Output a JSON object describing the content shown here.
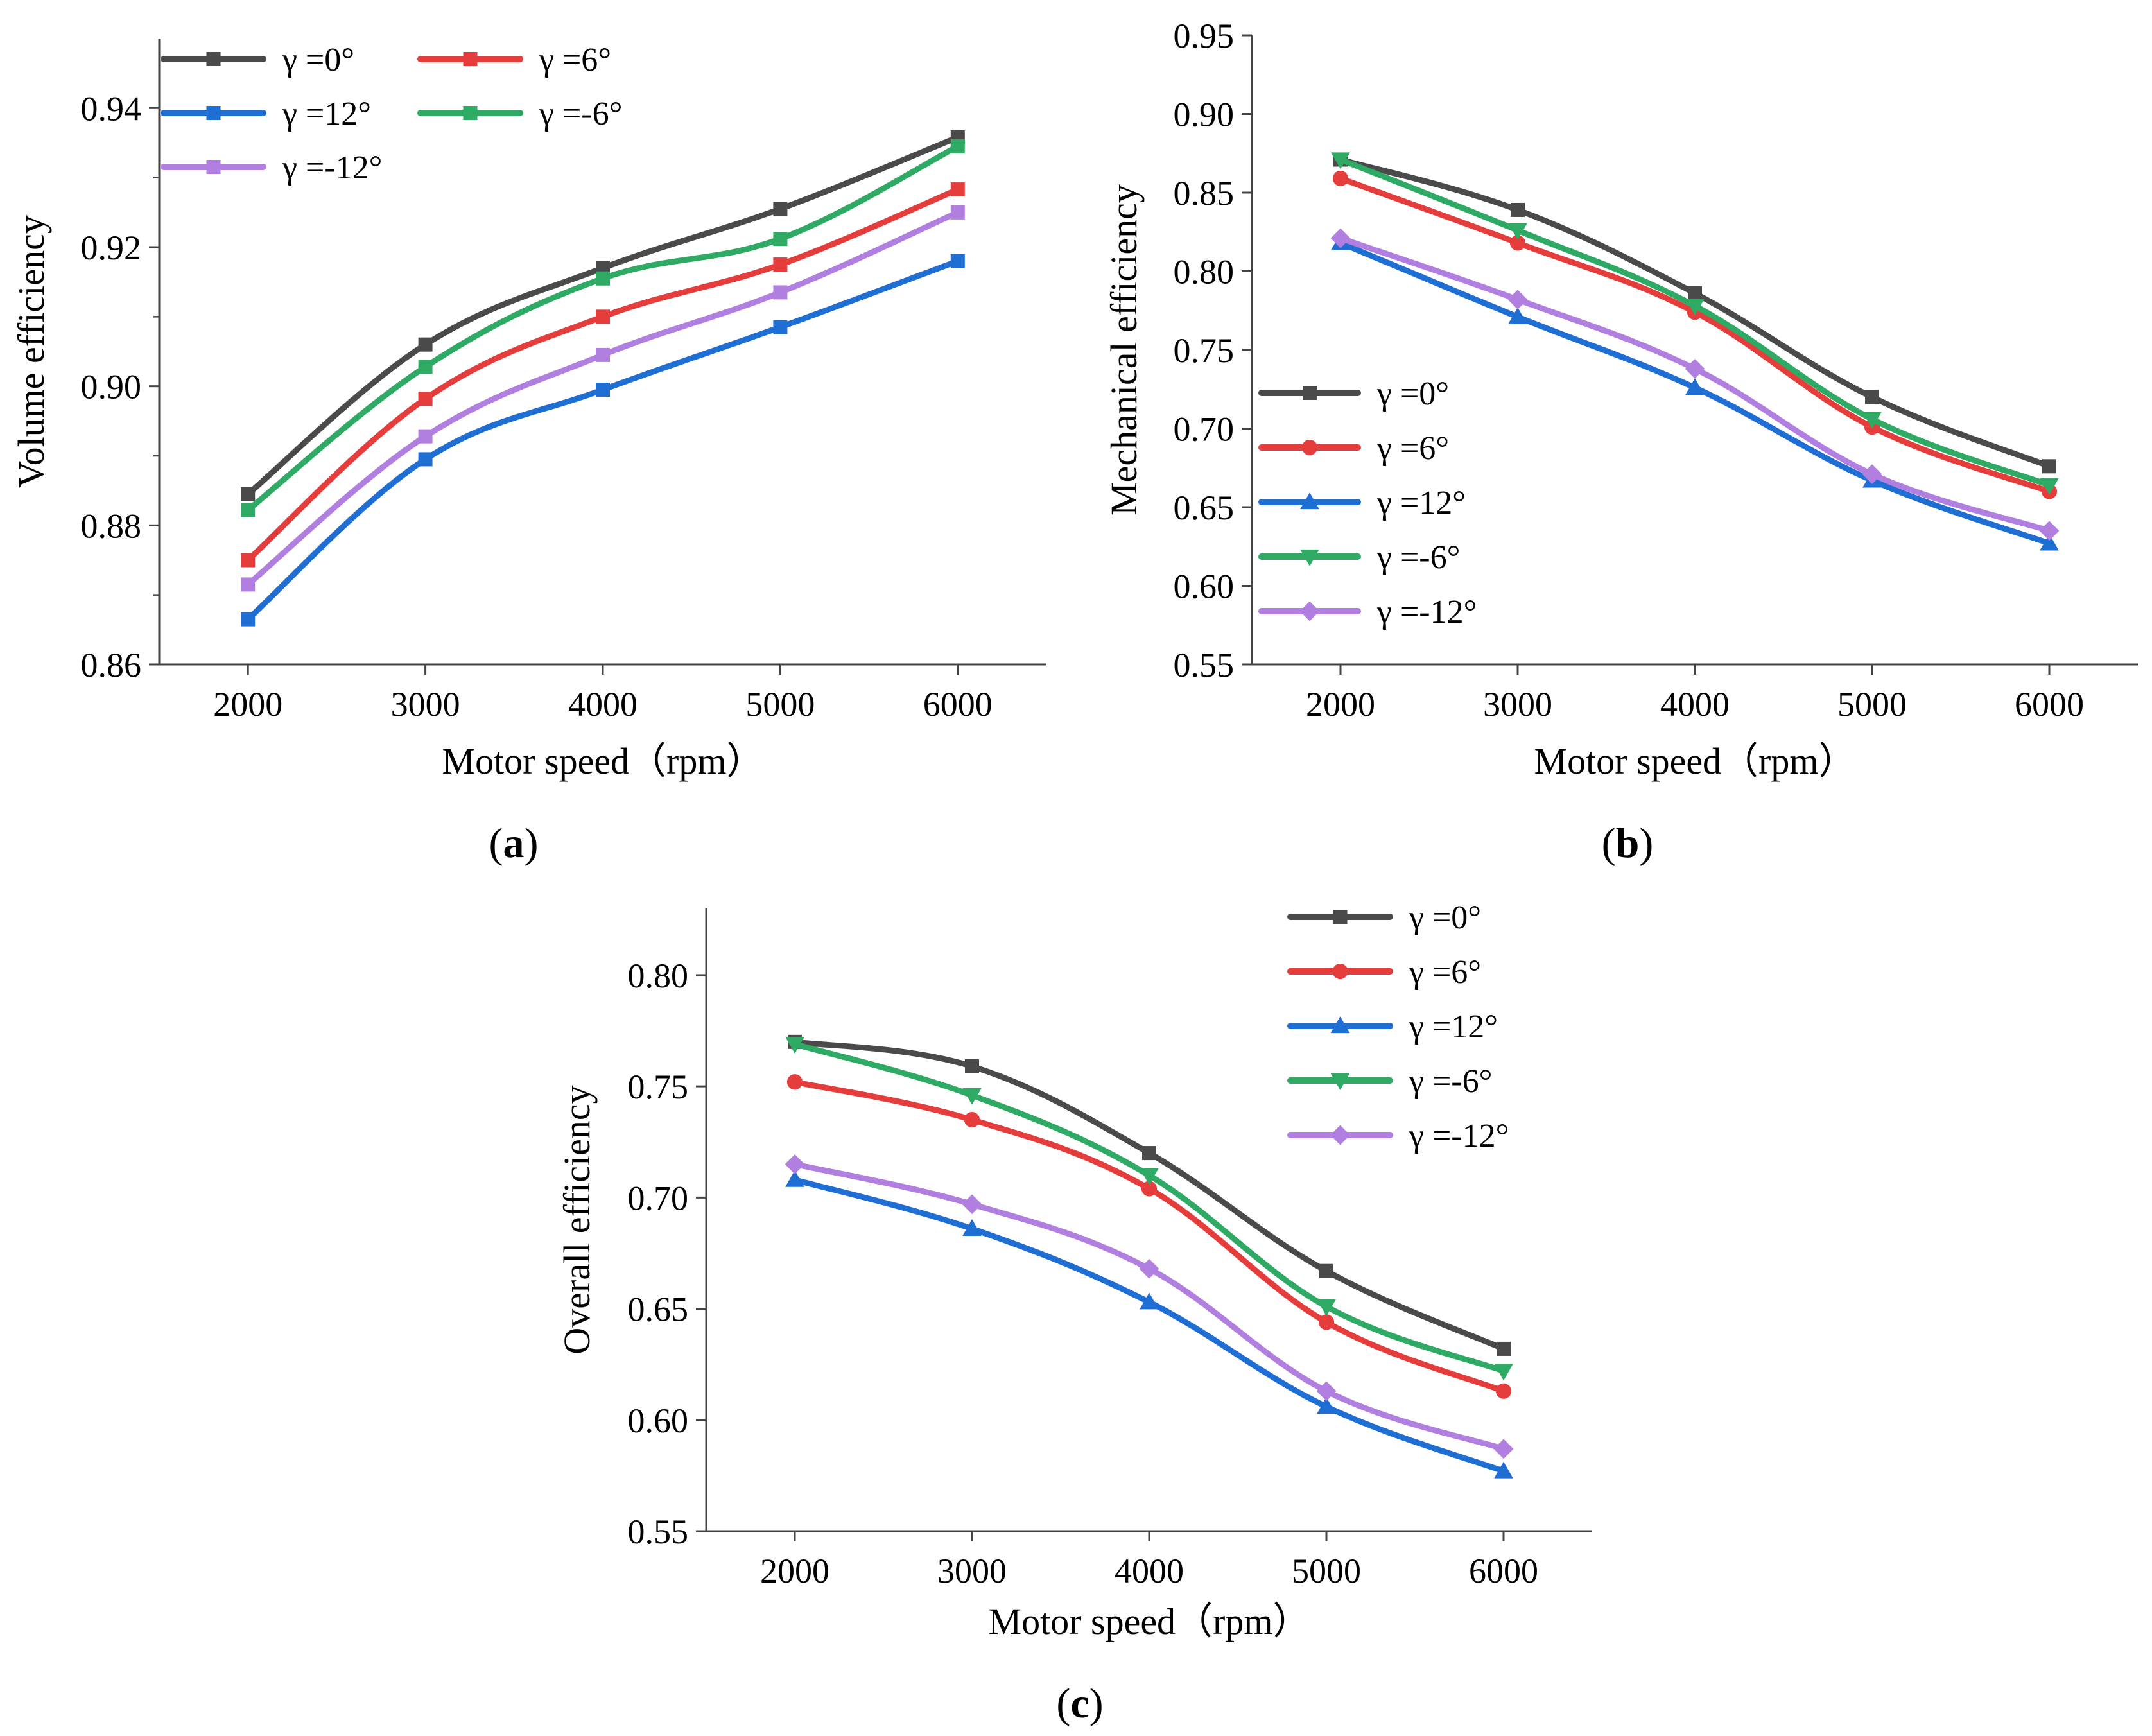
{
  "figure": {
    "panels": [
      "a",
      "b",
      "c"
    ]
  },
  "chart_data": [
    {
      "id": "a",
      "panel_label": "a",
      "type": "line",
      "title": "",
      "xlabel": "Motor speed（rpm）",
      "ylabel": "Volume efficiency",
      "x": [
        2000,
        3000,
        4000,
        5000,
        6000
      ],
      "xticks": [
        "2000",
        "3000",
        "4000",
        "5000",
        "6000"
      ],
      "xlim": [
        1500,
        6500
      ],
      "ylim": [
        0.86,
        0.95
      ],
      "yticks": [
        "0.86",
        "0.88",
        "0.90",
        "0.92",
        "0.94"
      ],
      "grid": false,
      "legend": "top-left",
      "series": [
        {
          "name": "γ =0°",
          "color": "#4a4a4a",
          "marker": "square",
          "values": [
            0.8845,
            0.906,
            0.917,
            0.9255,
            0.9358
          ]
        },
        {
          "name": "γ =12°",
          "color": "#1f6ed4",
          "marker": "square",
          "values": [
            0.8665,
            0.8895,
            0.8995,
            0.9085,
            0.918
          ]
        },
        {
          "name": "γ =-12°",
          "color": "#b07fe0",
          "marker": "square",
          "values": [
            0.8715,
            0.8928,
            0.9045,
            0.9135,
            0.925
          ]
        },
        {
          "name": "γ =6°",
          "color": "#e53c3c",
          "marker": "square",
          "values": [
            0.875,
            0.8982,
            0.91,
            0.9175,
            0.9283
          ]
        },
        {
          "name": "γ =-6°",
          "color": "#2eaa64",
          "marker": "square",
          "values": [
            0.8822,
            0.9028,
            0.9155,
            0.9212,
            0.9345
          ]
        }
      ]
    },
    {
      "id": "b",
      "panel_label": "b",
      "type": "line",
      "title": "",
      "xlabel": "Motor speed（rpm）",
      "ylabel": "Mechanical efficiency",
      "x": [
        2000,
        3000,
        4000,
        5000,
        6000
      ],
      "xticks": [
        "2000",
        "3000",
        "4000",
        "5000",
        "6000"
      ],
      "xlim": [
        1500,
        6500
      ],
      "ylim": [
        0.55,
        0.95
      ],
      "yticks": [
        "0.55",
        "0.60",
        "0.65",
        "0.70",
        "0.75",
        "0.80",
        "0.85",
        "0.90",
        "0.95"
      ],
      "grid": false,
      "legend": "center-left",
      "series": [
        {
          "name": "γ =0°",
          "color": "#4a4a4a",
          "marker": "square",
          "values": [
            0.871,
            0.839,
            0.786,
            0.72,
            0.676
          ]
        },
        {
          "name": "γ =6°",
          "color": "#e53c3c",
          "marker": "circle",
          "values": [
            0.859,
            0.818,
            0.774,
            0.701,
            0.66
          ]
        },
        {
          "name": "γ =12°",
          "color": "#1f6ed4",
          "marker": "triangle-up",
          "values": [
            0.818,
            0.771,
            0.726,
            0.667,
            0.627
          ]
        },
        {
          "name": "γ =-6°",
          "color": "#2eaa64",
          "marker": "triangle-down",
          "values": [
            0.871,
            0.826,
            0.778,
            0.706,
            0.664
          ]
        },
        {
          "name": "γ =-12°",
          "color": "#b07fe0",
          "marker": "diamond",
          "values": [
            0.821,
            0.782,
            0.738,
            0.671,
            0.635
          ]
        }
      ]
    },
    {
      "id": "c",
      "panel_label": "c",
      "type": "line",
      "title": "",
      "xlabel": "Motor speed（rpm）",
      "ylabel": "Overall efficiency",
      "x": [
        2000,
        3000,
        4000,
        5000,
        6000
      ],
      "xticks": [
        "2000",
        "3000",
        "4000",
        "5000",
        "6000"
      ],
      "xlim": [
        1500,
        6500
      ],
      "ylim": [
        0.55,
        0.83
      ],
      "yticks": [
        "0.55",
        "0.60",
        "0.65",
        "0.70",
        "0.75",
        "0.80"
      ],
      "grid": false,
      "legend": "top-right",
      "series": [
        {
          "name": "γ =0°",
          "color": "#4a4a4a",
          "marker": "square",
          "values": [
            0.77,
            0.759,
            0.72,
            0.667,
            0.632
          ]
        },
        {
          "name": "γ =6°",
          "color": "#e53c3c",
          "marker": "circle",
          "values": [
            0.752,
            0.735,
            0.704,
            0.644,
            0.613
          ]
        },
        {
          "name": "γ =12°",
          "color": "#1f6ed4",
          "marker": "triangle-up",
          "values": [
            0.708,
            0.686,
            0.653,
            0.606,
            0.577
          ]
        },
        {
          "name": "γ =-6°",
          "color": "#2eaa64",
          "marker": "triangle-down",
          "values": [
            0.769,
            0.746,
            0.71,
            0.651,
            0.622
          ]
        },
        {
          "name": "γ =-12°",
          "color": "#b07fe0",
          "marker": "diamond",
          "values": [
            0.715,
            0.697,
            0.668,
            0.613,
            0.587
          ]
        }
      ]
    }
  ]
}
